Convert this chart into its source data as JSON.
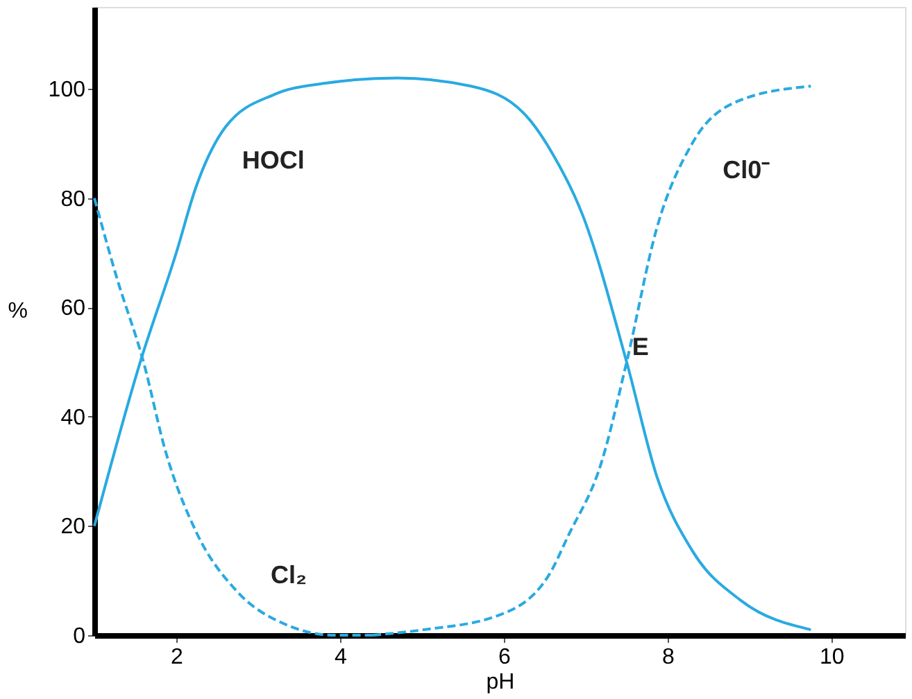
{
  "chart_data": {
    "type": "line",
    "xlabel": "pH",
    "ylabel": "%",
    "xlim": [
      1,
      10.9
    ],
    "ylim": [
      0,
      115
    ],
    "xticks": [
      2,
      4,
      6,
      8,
      10
    ],
    "yticks": [
      0,
      20,
      40,
      60,
      80,
      100
    ],
    "grid": false,
    "series": [
      {
        "name": "HOCl",
        "color": "#29aae1",
        "line_style": "solid",
        "x": [
          1,
          1.56,
          2,
          2.24,
          2.6,
          3.2,
          3.8,
          4.7,
          5.6,
          6.24,
          6.6,
          6.96,
          7.5,
          7.87,
          8.3,
          8.9,
          9.75
        ],
        "values": [
          20,
          50,
          70,
          82,
          93,
          99,
          101,
          102,
          100.5,
          95.6,
          88,
          77,
          50,
          29,
          15.5,
          6.3,
          1
        ]
      },
      {
        "name": "Cl₂",
        "color": "#29aae1",
        "line_style": "dashed",
        "x": [
          1,
          1.27,
          1.6,
          1.87,
          2.24,
          2.73,
          3.33,
          3.93,
          4.4
        ],
        "values": [
          80,
          65.6,
          50,
          33.6,
          19,
          8.2,
          2,
          0,
          0
        ]
      },
      {
        "name": "Cl0⁻",
        "color": "#29aae1",
        "line_style": "dashed",
        "x": [
          4.4,
          5.02,
          5.93,
          6.55,
          6.78,
          7.2,
          7.5,
          7.87,
          8.3,
          8.9,
          9.75
        ],
        "values": [
          0,
          1,
          3.6,
          11,
          18,
          32,
          50,
          74.6,
          90,
          98,
          100.5
        ]
      }
    ],
    "annotations": [
      {
        "text": "E",
        "x": 7.5,
        "y": 50
      }
    ]
  }
}
